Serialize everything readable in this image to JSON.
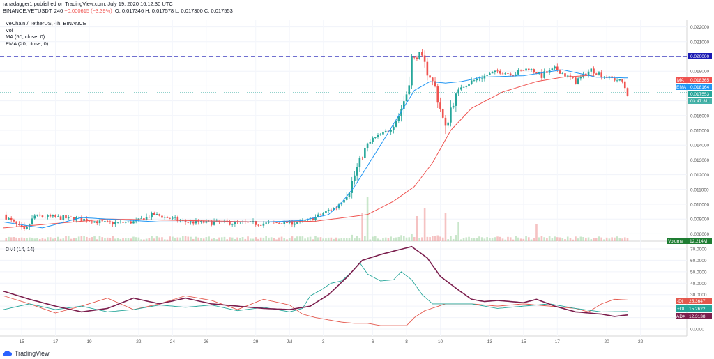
{
  "header": {
    "publish_line": "ranadagger1 published on TradingView.com, July 19, 2020 16:12:30 UTC",
    "symbol": "BINANCE:VETUSDT, 240",
    "change": "−0.000615 (−3.39%)",
    "ohlc": "O: 0.017346 H: 0.017578 L: 0.017300 C: 0.017553"
  },
  "legend": {
    "title": "VeChain / TetherUS, 4h, BINANCE",
    "vol": "Vol",
    "ma": "MA (50, close, 0)",
    "ema": "EMA (20, close, 0)"
  },
  "dmi_label": "DMI (14, 14)",
  "footer": {
    "brand": "TradingView"
  },
  "colors": {
    "up": "#26a69a",
    "down": "#ef5350",
    "ma": "#ef5350",
    "ema": "#2196f3",
    "adx": "#7b1e4d",
    "minus_di": "#e4584d",
    "plus_di": "#26a69a",
    "hline": "#1a1ab3"
  },
  "price_tags": {
    "level": "0.020000",
    "ma": "0.018365",
    "ema": "0.018164",
    "last": "0.017553",
    "countdown": "03:47:31",
    "volume_label": "Volume",
    "volume_value": "12.214M"
  },
  "dmi_tags": {
    "minus_di_label": "-DI",
    "minus_di": "25.3647",
    "plus_di_label": "+DI",
    "plus_di": "15.2622",
    "adx_label": "ADX",
    "adx": "12.3138"
  },
  "chart_data": [
    {
      "type": "candlestick",
      "title": "VeChain / TetherUS, 4h, BINANCE",
      "ylim": [
        0.0075,
        0.0225
      ],
      "yticks": [
        "0.022000",
        "0.021000",
        "0.020000",
        "0.019000",
        "0.018000",
        "0.017000",
        "0.016000",
        "0.015000",
        "0.014000",
        "0.013000",
        "0.012000",
        "0.011000",
        "0.010000",
        "0.009000",
        "0.008000"
      ],
      "xticks": [
        "15",
        "17",
        "19",
        "22",
        "24",
        "26",
        "29",
        "Jul",
        "3",
        "6",
        "8",
        "10",
        "13",
        "15",
        "17",
        "20",
        "22"
      ],
      "horizontal_line": 0.02,
      "ma_keypoints": [
        [
          0,
          0.0084
        ],
        [
          40,
          0.009
        ],
        [
          70,
          0.0089
        ],
        [
          100,
          0.0088
        ],
        [
          120,
          0.00885
        ],
        [
          140,
          0.0093
        ],
        [
          150,
          0.0102
        ],
        [
          158,
          0.0112
        ],
        [
          165,
          0.0128
        ],
        [
          172,
          0.015
        ],
        [
          180,
          0.0165
        ],
        [
          192,
          0.0176
        ],
        [
          205,
          0.0183
        ],
        [
          215,
          0.0186
        ],
        [
          228,
          0.01875
        ],
        [
          240,
          0.01875
        ]
      ],
      "ema_keypoints": [
        [
          0,
          0.0088
        ],
        [
          15,
          0.0084
        ],
        [
          30,
          0.0091
        ],
        [
          60,
          0.0088
        ],
        [
          100,
          0.0088
        ],
        [
          115,
          0.0089
        ],
        [
          125,
          0.0093
        ],
        [
          130,
          0.0101
        ],
        [
          135,
          0.0112
        ],
        [
          140,
          0.0126
        ],
        [
          145,
          0.014
        ],
        [
          152,
          0.016
        ],
        [
          158,
          0.0177
        ],
        [
          164,
          0.0183
        ],
        [
          170,
          0.0182
        ],
        [
          176,
          0.0183
        ],
        [
          184,
          0.0186
        ],
        [
          200,
          0.0187
        ],
        [
          215,
          0.0191
        ],
        [
          228,
          0.0186
        ],
        [
          240,
          0.01855
        ]
      ],
      "close_keypoints": [
        [
          0,
          0.0093
        ],
        [
          8,
          0.0081
        ],
        [
          12,
          0.0092
        ],
        [
          30,
          0.009
        ],
        [
          40,
          0.0087
        ],
        [
          50,
          0.0088
        ],
        [
          58,
          0.0093
        ],
        [
          70,
          0.0088
        ],
        [
          100,
          0.0087
        ],
        [
          115,
          0.0088
        ],
        [
          120,
          0.0091
        ],
        [
          125,
          0.0096
        ],
        [
          128,
          0.0098
        ],
        [
          133,
          0.011
        ],
        [
          137,
          0.0129
        ],
        [
          140,
          0.014
        ],
        [
          142,
          0.0144
        ],
        [
          148,
          0.015
        ],
        [
          152,
          0.016
        ],
        [
          155,
          0.0175
        ],
        [
          157,
          0.0197
        ],
        [
          160,
          0.0201
        ],
        [
          163,
          0.019
        ],
        [
          166,
          0.0179
        ],
        [
          170,
          0.015
        ],
        [
          172,
          0.0165
        ],
        [
          176,
          0.018
        ],
        [
          184,
          0.0186
        ],
        [
          190,
          0.019
        ],
        [
          196,
          0.0188
        ],
        [
          202,
          0.0192
        ],
        [
          207,
          0.0187
        ],
        [
          212,
          0.0192
        ],
        [
          220,
          0.0183
        ],
        [
          226,
          0.0191
        ],
        [
          232,
          0.0186
        ],
        [
          238,
          0.0183
        ],
        [
          240,
          0.01755
        ]
      ],
      "volume_spikes": [
        [
          138,
          0.5
        ],
        [
          140,
          0.8
        ],
        [
          159,
          0.45
        ],
        [
          162,
          0.6
        ],
        [
          170,
          0.5
        ],
        [
          175,
          0.35
        ],
        [
          205,
          0.3
        ]
      ]
    },
    {
      "type": "line",
      "title": "DMI (14, 14)",
      "ylim": [
        0,
        75
      ],
      "yticks": [
        "70.0000",
        "60.0000",
        "50.0000",
        "40.0000",
        "30.0000",
        "20.0000",
        "10.0000",
        "0.0000"
      ],
      "series": [
        {
          "name": "-DI",
          "keypoints": [
            [
              0,
              29
            ],
            [
              10,
              22
            ],
            [
              20,
              14
            ],
            [
              30,
              20
            ],
            [
              40,
              27
            ],
            [
              50,
              17
            ],
            [
              60,
              22
            ],
            [
              70,
              29
            ],
            [
              80,
              25
            ],
            [
              90,
              17
            ],
            [
              100,
              26
            ],
            [
              110,
              21
            ],
            [
              115,
              13
            ],
            [
              120,
              10
            ],
            [
              125,
              8
            ],
            [
              130,
              6
            ],
            [
              135,
              5
            ],
            [
              140,
              5
            ],
            [
              145,
              3
            ],
            [
              150,
              3
            ],
            [
              155,
              3
            ],
            [
              158,
              10
            ],
            [
              162,
              16
            ],
            [
              170,
              22
            ],
            [
              180,
              22
            ],
            [
              190,
              20
            ],
            [
              200,
              22
            ],
            [
              210,
              20
            ],
            [
              220,
              18
            ],
            [
              225,
              15
            ],
            [
              230,
              22
            ],
            [
              235,
              26
            ],
            [
              240,
              25.36
            ]
          ]
        },
        {
          "name": "+DI",
          "keypoints": [
            [
              0,
              17
            ],
            [
              10,
              22
            ],
            [
              20,
              17
            ],
            [
              30,
              20
            ],
            [
              40,
              15
            ],
            [
              50,
              17
            ],
            [
              60,
              21
            ],
            [
              70,
              19
            ],
            [
              80,
              21
            ],
            [
              90,
              16
            ],
            [
              100,
              19
            ],
            [
              110,
              15
            ],
            [
              115,
              18
            ],
            [
              118,
              29
            ],
            [
              122,
              34
            ],
            [
              126,
              40
            ],
            [
              130,
              42
            ],
            [
              134,
              50
            ],
            [
              137,
              58
            ],
            [
              140,
              48
            ],
            [
              145,
              42
            ],
            [
              150,
              43
            ],
            [
              153,
              50
            ],
            [
              157,
              43
            ],
            [
              161,
              30
            ],
            [
              165,
              22
            ],
            [
              170,
              22
            ],
            [
              180,
              22
            ],
            [
              190,
              18
            ],
            [
              200,
              20
            ],
            [
              210,
              22
            ],
            [
              220,
              18
            ],
            [
              230,
              15
            ],
            [
              240,
              15.26
            ]
          ]
        },
        {
          "name": "ADX",
          "keypoints": [
            [
              0,
              33
            ],
            [
              10,
              26
            ],
            [
              20,
              20
            ],
            [
              30,
              15
            ],
            [
              40,
              18
            ],
            [
              50,
              27
            ],
            [
              60,
              22
            ],
            [
              70,
              27
            ],
            [
              80,
              22
            ],
            [
              90,
              20
            ],
            [
              100,
              18
            ],
            [
              110,
              17
            ],
            [
              118,
              20
            ],
            [
              125,
              30
            ],
            [
              132,
              45
            ],
            [
              138,
              60
            ],
            [
              145,
              65
            ],
            [
              150,
              68
            ],
            [
              157,
              72
            ],
            [
              163,
              62
            ],
            [
              168,
              46
            ],
            [
              175,
              34
            ],
            [
              180,
              26
            ],
            [
              185,
              24
            ],
            [
              190,
              25
            ],
            [
              200,
              23
            ],
            [
              205,
              26
            ],
            [
              212,
              20
            ],
            [
              220,
              15
            ],
            [
              230,
              13
            ],
            [
              235,
              11
            ],
            [
              240,
              12.31
            ]
          ]
        }
      ]
    }
  ]
}
